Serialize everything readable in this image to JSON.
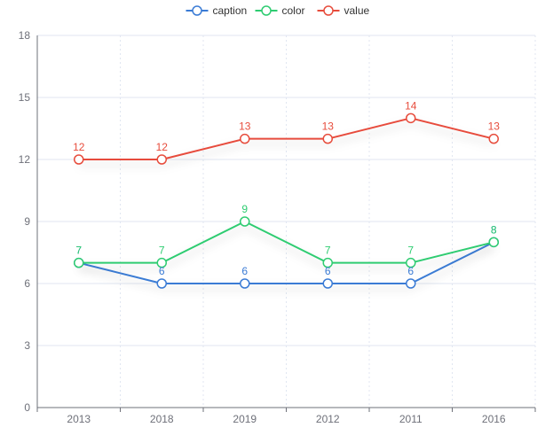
{
  "chart_data": {
    "type": "line",
    "categories": [
      "2013",
      "2018",
      "2019",
      "2012",
      "2011",
      "2016"
    ],
    "ylim": [
      0,
      18
    ],
    "yticks": [
      "0",
      "3",
      "6",
      "9",
      "12",
      "15",
      "18"
    ],
    "grid": true,
    "legend_position": "top-center",
    "series": [
      {
        "name": "caption",
        "color": "#3a7bd5",
        "values": [
          7,
          6,
          6,
          6,
          6,
          8
        ]
      },
      {
        "name": "color",
        "color": "#2ecc71",
        "values": [
          7,
          7,
          9,
          7,
          7,
          8
        ]
      },
      {
        "name": "value",
        "color": "#e74c3c",
        "values": [
          12,
          12,
          13,
          13,
          14,
          13
        ]
      }
    ]
  }
}
